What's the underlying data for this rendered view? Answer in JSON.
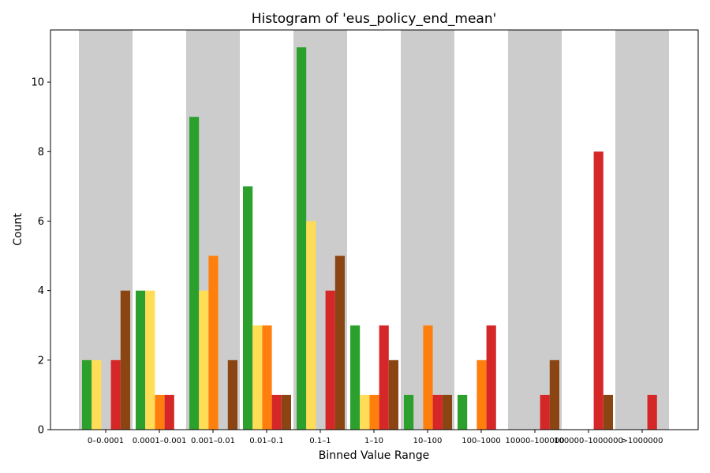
{
  "chart_data": {
    "type": "bar",
    "title": "Histogram of 'eus_policy_end_mean'",
    "xlabel": "Binned Value Range",
    "ylabel": "Count",
    "ylim": [
      0,
      11.5
    ],
    "yticks": [
      0,
      2,
      4,
      6,
      8,
      10
    ],
    "categories": [
      "0–0.0001",
      "0.0001–0.001",
      "0.001–0.01",
      "0.01–0.1",
      "0.1–1",
      "1–10",
      "10–100",
      "100–1000",
      "10000–100000",
      "100000–1000000",
      ">1000000"
    ],
    "shaded_bins": [
      0,
      2,
      4,
      6,
      8,
      10
    ],
    "shade_color": "#cccccc",
    "series": [
      {
        "color": "#2ca02c",
        "values": [
          2,
          4,
          9,
          7,
          11,
          3,
          1,
          1,
          0,
          0,
          0
        ]
      },
      {
        "color": "#ffdd57",
        "values": [
          2,
          4,
          4,
          3,
          6,
          1,
          0,
          0,
          0,
          0,
          0
        ]
      },
      {
        "color": "#ff7f0e",
        "values": [
          0,
          1,
          5,
          3,
          0,
          1,
          3,
          2,
          0,
          0,
          0
        ]
      },
      {
        "color": "#d62728",
        "values": [
          2,
          1,
          0,
          1,
          4,
          3,
          1,
          3,
          1,
          8,
          1
        ]
      },
      {
        "color": "#8b4513",
        "values": [
          4,
          0,
          2,
          1,
          5,
          2,
          1,
          0,
          2,
          1,
          0
        ]
      }
    ],
    "grid": false,
    "legend": "none"
  }
}
